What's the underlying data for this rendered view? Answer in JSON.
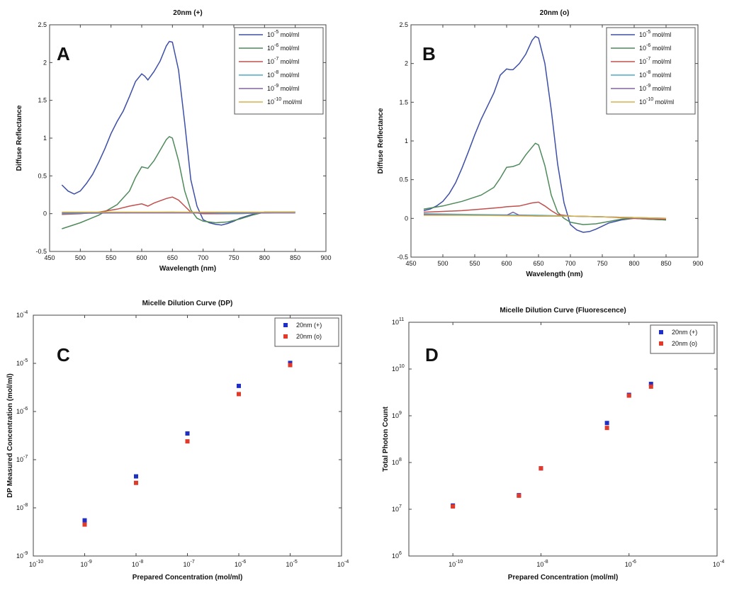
{
  "panel_labels": [
    "A",
    "B",
    "C",
    "D"
  ],
  "legend_unit": "mol/ml",
  "chart_data": [
    {
      "id": "A",
      "type": "line",
      "title": "20nm (+)",
      "xlabel": "Wavelength (nm)",
      "ylabel": "Diffuse Reflectance",
      "xlim": [
        450,
        900
      ],
      "ylim": [
        -0.5,
        2.5
      ],
      "xticks": [
        450,
        500,
        550,
        600,
        650,
        700,
        750,
        800,
        850,
        900
      ],
      "xtick_labels": [
        "450",
        "500",
        "550",
        "600",
        "650",
        "700",
        "750",
        "800",
        "850",
        "900"
      ],
      "yticks": [
        -0.5,
        0,
        0.5,
        1,
        1.5,
        2,
        2.5
      ],
      "ytick_labels": [
        "-0.5",
        "0",
        "0.5",
        "1",
        "1.5",
        "2",
        "2.5"
      ],
      "legend_position": "top-right",
      "series": [
        {
          "name": "10^-5 mol/ml",
          "exp": "-5",
          "color": "#3d4fa6",
          "x": [
            470,
            480,
            490,
            500,
            510,
            520,
            530,
            540,
            550,
            560,
            570,
            580,
            590,
            600,
            605,
            610,
            620,
            630,
            640,
            645,
            650,
            660,
            670,
            680,
            690,
            700,
            710,
            720,
            730,
            740,
            750,
            760,
            780,
            800,
            820,
            850
          ],
          "y": [
            0.38,
            0.3,
            0.26,
            0.3,
            0.4,
            0.52,
            0.68,
            0.86,
            1.06,
            1.22,
            1.36,
            1.55,
            1.75,
            1.85,
            1.82,
            1.77,
            1.88,
            2.02,
            2.22,
            2.28,
            2.27,
            1.9,
            1.2,
            0.45,
            0.1,
            -0.08,
            -0.12,
            -0.14,
            -0.15,
            -0.13,
            -0.1,
            -0.06,
            -0.01,
            0.02,
            0.02,
            0.02
          ]
        },
        {
          "name": "10^-6 mol/ml",
          "exp": "-6",
          "color": "#4f8a5a",
          "x": [
            470,
            500,
            530,
            560,
            580,
            590,
            600,
            610,
            620,
            630,
            640,
            645,
            650,
            660,
            670,
            680,
            690,
            700,
            720,
            740,
            760,
            780,
            800,
            820,
            850
          ],
          "y": [
            -0.2,
            -0.12,
            -0.02,
            0.12,
            0.3,
            0.48,
            0.62,
            0.6,
            0.7,
            0.84,
            0.98,
            1.02,
            1.0,
            0.7,
            0.3,
            0.05,
            -0.06,
            -0.1,
            -0.12,
            -0.11,
            -0.07,
            -0.02,
            0.02,
            0.02,
            0.02
          ]
        },
        {
          "name": "10^-7 mol/ml",
          "exp": "-7",
          "color": "#c0504d",
          "x": [
            470,
            500,
            530,
            560,
            580,
            600,
            610,
            620,
            640,
            650,
            660,
            670,
            680,
            700,
            750,
            800,
            850
          ],
          "y": [
            -0.01,
            0.0,
            0.02,
            0.06,
            0.1,
            0.13,
            0.1,
            0.14,
            0.2,
            0.22,
            0.18,
            0.1,
            0.02,
            0.0,
            0.0,
            0.01,
            0.02
          ]
        },
        {
          "name": "10^-8 mol/ml",
          "exp": "-8",
          "color": "#4bacc6",
          "x": [
            470,
            550,
            650,
            700,
            750,
            800,
            850
          ],
          "y": [
            0.0,
            0.01,
            0.02,
            0.01,
            0.0,
            0.01,
            0.02
          ]
        },
        {
          "name": "10^-9 mol/ml",
          "exp": "-9",
          "color": "#8064a2",
          "x": [
            470,
            550,
            650,
            700,
            750,
            800,
            850
          ],
          "y": [
            0.01,
            0.01,
            0.01,
            0.01,
            0.01,
            0.01,
            0.01
          ]
        },
        {
          "name": "10^-10 mol/ml",
          "exp": "-10",
          "color": "#d4b24a",
          "x": [
            470,
            550,
            650,
            700,
            750,
            800,
            850
          ],
          "y": [
            0.02,
            0.02,
            0.02,
            0.02,
            0.02,
            0.02,
            0.02
          ]
        }
      ]
    },
    {
      "id": "B",
      "type": "line",
      "title": "20nm (o)",
      "xlabel": "Wavelength (nm)",
      "ylabel": "Diffuse Reflectance",
      "xlim": [
        450,
        900
      ],
      "ylim": [
        -0.5,
        2.5
      ],
      "xticks": [
        450,
        500,
        550,
        600,
        650,
        700,
        750,
        800,
        850,
        900
      ],
      "xtick_labels": [
        "450",
        "500",
        "550",
        "600",
        "650",
        "700",
        "750",
        "800",
        "850",
        "900"
      ],
      "yticks": [
        -0.5,
        0,
        0.5,
        1,
        1.5,
        2,
        2.5
      ],
      "ytick_labels": [
        "-0.5",
        "0",
        "0.5",
        "1",
        "1.5",
        "2",
        "2.5"
      ],
      "legend_position": "top-right",
      "series": [
        {
          "name": "10^-5 mol/ml",
          "exp": "-5",
          "color": "#3d4fa6",
          "x": [
            470,
            480,
            490,
            500,
            510,
            520,
            530,
            540,
            550,
            560,
            570,
            580,
            590,
            600,
            605,
            610,
            620,
            630,
            640,
            645,
            650,
            660,
            670,
            680,
            690,
            700,
            710,
            720,
            730,
            740,
            750,
            760,
            780,
            800,
            820,
            850
          ],
          "y": [
            0.1,
            0.12,
            0.16,
            0.22,
            0.32,
            0.46,
            0.65,
            0.86,
            1.08,
            1.28,
            1.45,
            1.62,
            1.85,
            1.93,
            1.92,
            1.92,
            2.0,
            2.12,
            2.3,
            2.35,
            2.33,
            2.0,
            1.4,
            0.7,
            0.2,
            -0.08,
            -0.15,
            -0.18,
            -0.17,
            -0.14,
            -0.1,
            -0.06,
            -0.02,
            0.0,
            -0.01,
            -0.02
          ]
        },
        {
          "name": "10^-6 mol/ml",
          "exp": "-6",
          "color": "#4f8a5a",
          "x": [
            470,
            500,
            530,
            560,
            580,
            590,
            600,
            610,
            620,
            630,
            640,
            645,
            650,
            660,
            670,
            680,
            690,
            700,
            720,
            740,
            760,
            780,
            800,
            820,
            850
          ],
          "y": [
            0.12,
            0.16,
            0.22,
            0.3,
            0.4,
            0.52,
            0.66,
            0.67,
            0.7,
            0.82,
            0.92,
            0.97,
            0.95,
            0.68,
            0.3,
            0.08,
            0.0,
            -0.05,
            -0.08,
            -0.07,
            -0.04,
            -0.01,
            0.0,
            -0.01,
            -0.02
          ]
        },
        {
          "name": "10^-7 mol/ml",
          "exp": "-7",
          "color": "#c0504d",
          "x": [
            470,
            500,
            530,
            560,
            590,
            600,
            620,
            640,
            650,
            660,
            670,
            680,
            700,
            750,
            800,
            850
          ],
          "y": [
            0.08,
            0.09,
            0.1,
            0.12,
            0.14,
            0.15,
            0.16,
            0.2,
            0.21,
            0.16,
            0.1,
            0.05,
            0.03,
            0.02,
            0.0,
            -0.01
          ]
        },
        {
          "name": "10^-8 mol/ml",
          "exp": "-8",
          "color": "#4bacc6",
          "x": [
            470,
            550,
            650,
            700,
            750,
            800,
            850
          ],
          "y": [
            0.06,
            0.05,
            0.04,
            0.03,
            0.02,
            0.01,
            0.0
          ]
        },
        {
          "name": "10^-9 mol/ml",
          "exp": "-9",
          "color": "#8064a2",
          "x": [
            470,
            550,
            600,
            610,
            620,
            650,
            700,
            750,
            800,
            850
          ],
          "y": [
            0.05,
            0.04,
            0.04,
            0.08,
            0.04,
            0.03,
            0.03,
            0.02,
            0.01,
            0.0
          ]
        },
        {
          "name": "10^-10 mol/ml",
          "exp": "-10",
          "color": "#d4b24a",
          "x": [
            470,
            550,
            650,
            700,
            750,
            800,
            850
          ],
          "y": [
            0.04,
            0.04,
            0.03,
            0.03,
            0.02,
            0.01,
            0.0
          ]
        }
      ]
    },
    {
      "id": "C",
      "type": "scatter",
      "title": "Micelle Dilution Curve (DP)",
      "xlabel": "Prepared Concentration (mol/ml)",
      "ylabel": "DP Measured Concentration (mol/ml)",
      "xscale": "log",
      "yscale": "log",
      "xlim_exp": [
        -10,
        -4
      ],
      "ylim_exp": [
        -9,
        -4
      ],
      "xtick_exps": [
        "-10",
        "-9",
        "-8",
        "-7",
        "-6",
        "-5",
        "-4"
      ],
      "ytick_exps": [
        "-9",
        "-8",
        "-7",
        "-6",
        "-5",
        "-4"
      ],
      "legend_position": "top-right",
      "series": [
        {
          "name": "20nm (+)",
          "color": "#1f2fc4",
          "x": [
            1e-09,
            1e-08,
            1e-07,
            1e-06,
            1e-05
          ],
          "y": [
            5.5e-09,
            4.5e-08,
            3.5e-07,
            3.4e-06,
            1.02e-05
          ]
        },
        {
          "name": "20nm (o)",
          "color": "#e03a2a",
          "x": [
            1e-09,
            1e-08,
            1e-07,
            1e-06,
            1e-05
          ],
          "y": [
            4.5e-09,
            3.3e-08,
            2.4e-07,
            2.3e-06,
            9.2e-06
          ]
        }
      ]
    },
    {
      "id": "D",
      "type": "scatter",
      "title": "Micelle Dilution Curve (Fluorescence)",
      "xlabel": "Prepared Concentration (mol/ml)",
      "ylabel": "Total Photon Count",
      "xscale": "log",
      "yscale": "log",
      "xlim_exp": [
        -11,
        -4
      ],
      "ylim_exp": [
        6,
        11
      ],
      "xtick_exps": [
        "-10",
        "-8",
        "-6",
        "-4"
      ],
      "xtick_values": [
        -10,
        -8,
        -6,
        -4
      ],
      "ytick_exps": [
        "6",
        "7",
        "8",
        "9",
        "10",
        "11"
      ],
      "legend_position": "top-right",
      "series": [
        {
          "name": "20nm (+)",
          "color": "#1f2fc4",
          "x": [
            1e-10,
            3.16e-09,
            1e-08,
            3.16e-07,
            1e-06,
            3.16e-06
          ],
          "y": [
            12000000.0,
            20000000.0,
            75000000.0,
            700000000.0,
            2800000000.0,
            4800000000.0
          ]
        },
        {
          "name": "20nm (o)",
          "color": "#e03a2a",
          "x": [
            1e-10,
            3.16e-09,
            1e-08,
            3.16e-07,
            1e-06,
            3.16e-06
          ],
          "y": [
            11500000.0,
            19500000.0,
            75000000.0,
            550000000.0,
            2700000000.0,
            4200000000.0
          ]
        }
      ]
    }
  ]
}
